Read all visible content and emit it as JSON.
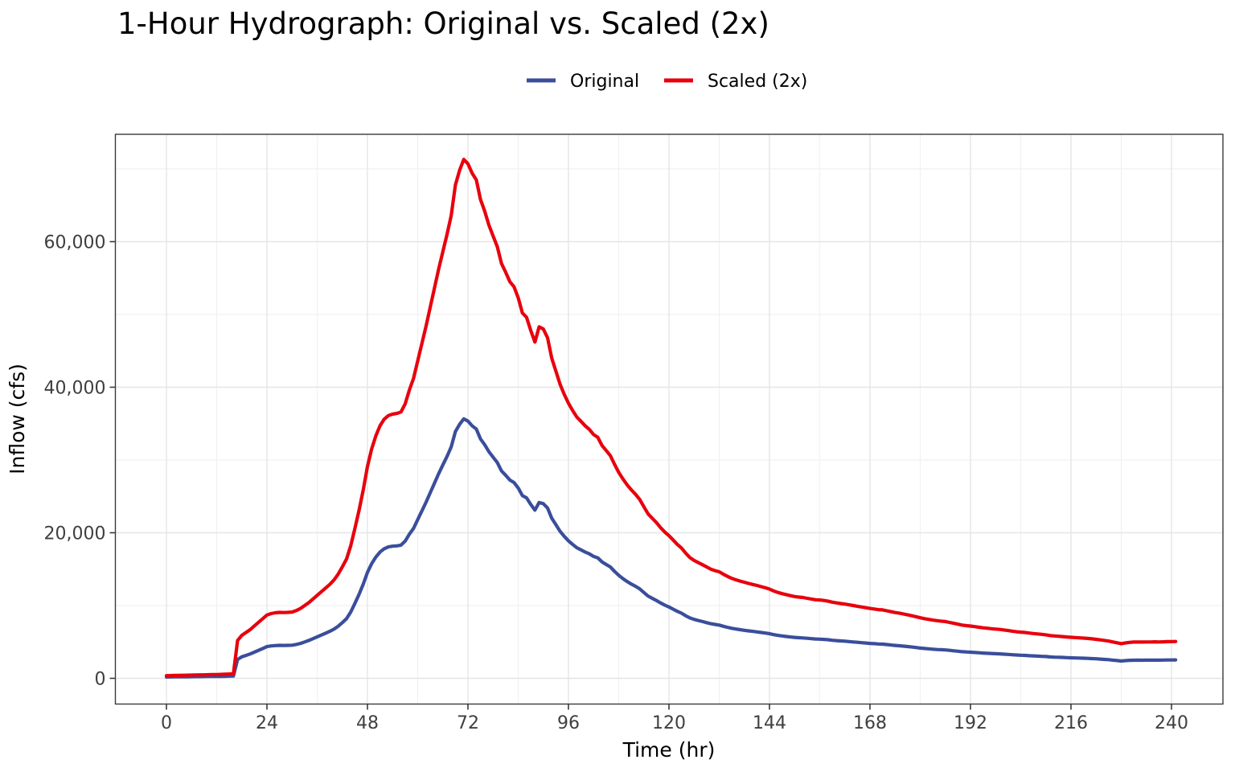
{
  "chart": {
    "title": "1-Hour Hydrograph: Original vs. Scaled (2x)",
    "xlabel": "Time (hr)",
    "ylabel": "Inflow (cfs)"
  },
  "chart_data": {
    "type": "line",
    "title": "1-Hour Hydrograph: Original vs. Scaled (2x)",
    "xlabel": "Time (hr)",
    "ylabel": "Inflow (cfs)",
    "x_unit": "hr",
    "x_start": 0,
    "x_step": 1,
    "n_points": 242,
    "xlim": [
      -11.5,
      252.5
    ],
    "ylim": [
      -3400,
      74800
    ],
    "x_ticks_major": [
      0,
      24,
      48,
      72,
      96,
      120,
      144,
      168,
      192,
      216,
      240
    ],
    "x_ticks_minor": [
      12,
      36,
      60,
      84,
      108,
      132,
      156,
      180,
      204,
      228
    ],
    "y_ticks_major": [
      0,
      20000,
      40000,
      60000
    ],
    "y_ticks_minor": [
      10000,
      30000,
      50000,
      70000
    ],
    "y_tick_labels": [
      "0",
      "20,000",
      "40,000",
      "60,000"
    ],
    "grid": "both",
    "legend_position": "top-center",
    "series": [
      {
        "name": "Original",
        "color": "#3a4e9b",
        "values": [
          180,
          190,
          200,
          200,
          210,
          215,
          220,
          230,
          235,
          240,
          250,
          255,
          260,
          270,
          280,
          295,
          310,
          2600,
          2950,
          3150,
          3350,
          3600,
          3850,
          4100,
          4350,
          4450,
          4500,
          4530,
          4520,
          4530,
          4550,
          4650,
          4800,
          5000,
          5200,
          5450,
          5700,
          5950,
          6200,
          6450,
          6750,
          7150,
          7650,
          8200,
          9100,
          10300,
          11550,
          12950,
          14550,
          15750,
          16650,
          17350,
          17800,
          18050,
          18150,
          18200,
          18300,
          18850,
          19800,
          20600,
          21800,
          23000,
          24200,
          25500,
          26800,
          28100,
          29300,
          30500,
          31800,
          33900,
          34900,
          35650,
          35350,
          34700,
          34250,
          32900,
          32100,
          31150,
          30400,
          29650,
          28500,
          27900,
          27250,
          26900,
          26150,
          25100,
          24800,
          23900,
          23100,
          24150,
          24000,
          23400,
          22000,
          21100,
          20200,
          19500,
          18900,
          18400,
          17950,
          17650,
          17350,
          17100,
          16750,
          16550,
          16000,
          15650,
          15300,
          14700,
          14150,
          13700,
          13300,
          12950,
          12650,
          12300,
          11800,
          11300,
          11000,
          10700,
          10350,
          10050,
          9800,
          9500,
          9200,
          8950,
          8600,
          8300,
          8100,
          7950,
          7800,
          7650,
          7500,
          7400,
          7320,
          7150,
          7000,
          6870,
          6770,
          6680,
          6600,
          6520,
          6450,
          6380,
          6300,
          6220,
          6130,
          6000,
          5900,
          5820,
          5750,
          5680,
          5620,
          5580,
          5550,
          5500,
          5450,
          5400,
          5380,
          5350,
          5300,
          5230,
          5180,
          5140,
          5100,
          5050,
          5000,
          4950,
          4900,
          4850,
          4800,
          4760,
          4720,
          4700,
          4640,
          4580,
          4520,
          4480,
          4420,
          4360,
          4300,
          4230,
          4160,
          4100,
          4050,
          4000,
          3960,
          3930,
          3900,
          3840,
          3780,
          3720,
          3660,
          3620,
          3590,
          3550,
          3510,
          3470,
          3440,
          3410,
          3380,
          3360,
          3320,
          3280,
          3240,
          3200,
          3170,
          3150,
          3110,
          3080,
          3050,
          3020,
          2990,
          2940,
          2910,
          2890,
          2870,
          2840,
          2820,
          2800,
          2780,
          2760,
          2740,
          2710,
          2680,
          2640,
          2600,
          2560,
          2500,
          2440,
          2380,
          2430,
          2470,
          2490,
          2500,
          2490,
          2500,
          2500,
          2510,
          2500,
          2510,
          2520,
          2520,
          2530
        ]
      },
      {
        "name": "Scaled (2x)",
        "color": "#e8000d",
        "values": [
          360,
          380,
          400,
          400,
          420,
          430,
          440,
          460,
          470,
          480,
          500,
          510,
          520,
          540,
          560,
          590,
          620,
          5200,
          5900,
          6300,
          6700,
          7200,
          7700,
          8200,
          8700,
          8900,
          9000,
          9060,
          9040,
          9060,
          9100,
          9300,
          9600,
          10000,
          10400,
          10900,
          11400,
          11900,
          12400,
          12900,
          13500,
          14300,
          15300,
          16400,
          18200,
          20600,
          23100,
          25900,
          29100,
          31500,
          33300,
          34700,
          35600,
          36100,
          36300,
          36400,
          36600,
          37700,
          39600,
          41200,
          43600,
          46000,
          48400,
          51000,
          53600,
          56200,
          58600,
          61000,
          63600,
          67800,
          69800,
          71300,
          70700,
          69400,
          68500,
          65800,
          64200,
          62300,
          60800,
          59300,
          57000,
          55800,
          54500,
          53800,
          52300,
          50200,
          49600,
          47800,
          46200,
          48300,
          48000,
          46800,
          44000,
          42200,
          40400,
          39000,
          37800,
          36800,
          35900,
          35300,
          34700,
          34200,
          33500,
          33100,
          32000,
          31300,
          30600,
          29400,
          28300,
          27400,
          26600,
          25900,
          25300,
          24600,
          23600,
          22600,
          22000,
          21400,
          20700,
          20100,
          19600,
          19000,
          18400,
          17900,
          17200,
          16600,
          16200,
          15900,
          15600,
          15300,
          15000,
          14800,
          14640,
          14300,
          14000,
          13740,
          13540,
          13360,
          13200,
          13040,
          12900,
          12760,
          12600,
          12440,
          12260,
          12000,
          11800,
          11640,
          11500,
          11360,
          11240,
          11160,
          11100,
          11000,
          10900,
          10800,
          10760,
          10700,
          10600,
          10460,
          10360,
          10280,
          10200,
          10100,
          10000,
          9900,
          9800,
          9700,
          9600,
          9520,
          9440,
          9400,
          9280,
          9160,
          9040,
          8960,
          8840,
          8720,
          8600,
          8460,
          8320,
          8200,
          8100,
          8000,
          7920,
          7860,
          7800,
          7680,
          7560,
          7440,
          7320,
          7240,
          7180,
          7100,
          7020,
          6940,
          6880,
          6820,
          6760,
          6720,
          6640,
          6560,
          6480,
          6400,
          6340,
          6300,
          6220,
          6160,
          6100,
          6040,
          5980,
          5880,
          5820,
          5780,
          5740,
          5680,
          5640,
          5600,
          5560,
          5520,
          5480,
          5420,
          5360,
          5280,
          5200,
          5120,
          5000,
          4880,
          4760,
          4860,
          4940,
          4980,
          5000,
          4980,
          5000,
          5000,
          5020,
          5000,
          5020,
          5040,
          5040,
          5060
        ]
      }
    ]
  },
  "colors": {
    "original_line": "#3a4e9b",
    "scaled_line": "#e8000d",
    "grid_major": "#e5e5e5",
    "grid_minor": "#f1f1f1",
    "panel_border": "#3a3a3a",
    "tick_label_text": "#3f3f3f",
    "title_text": "#000000"
  }
}
